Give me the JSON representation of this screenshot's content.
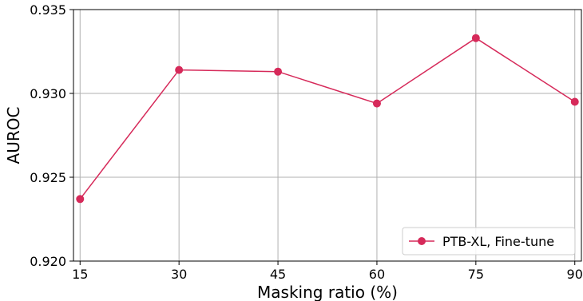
{
  "chart_data": {
    "type": "line",
    "xlabel": "Masking ratio (%)",
    "ylabel": "AUROC",
    "x": [
      15,
      30,
      45,
      60,
      75,
      90
    ],
    "xticks": [
      15,
      30,
      45,
      60,
      75,
      90
    ],
    "xlim": [
      14,
      91
    ],
    "ylim": [
      0.92,
      0.935
    ],
    "yticks": [
      "0.920",
      "0.925",
      "0.930",
      "0.935"
    ],
    "grid": true,
    "legend_position": "bottom-right",
    "series": [
      {
        "name": "PTB-XL, Fine-tune",
        "values": [
          0.9237,
          0.9314,
          0.9313,
          0.9294,
          0.9333,
          0.9295
        ],
        "color": "#d62a5a",
        "marker": "circle"
      }
    ]
  }
}
